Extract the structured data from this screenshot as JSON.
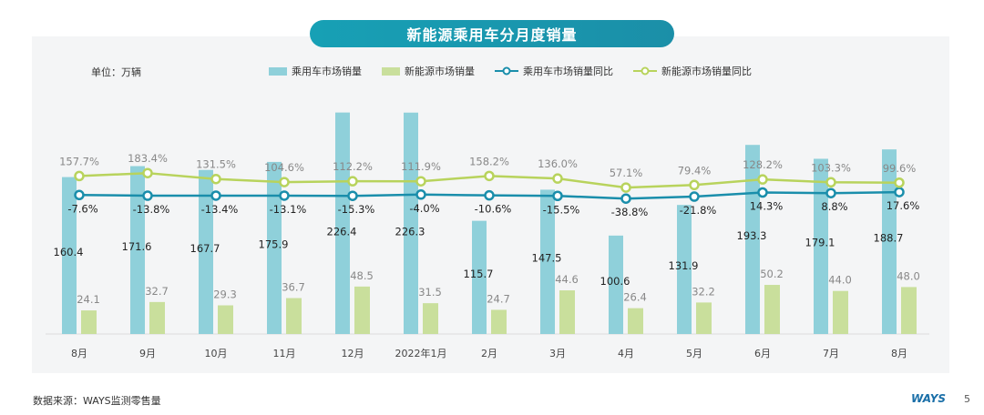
{
  "chart_data": {
    "type": "bar",
    "title": "新能源乘用车分月度销量",
    "unit_label": "单位：万辆",
    "categories": [
      "8月",
      "9月",
      "10月",
      "11月",
      "12月",
      "2022年1月",
      "2月",
      "3月",
      "4月",
      "5月",
      "6月",
      "7月",
      "8月"
    ],
    "series": [
      {
        "name": "乘用车市场销量",
        "kind": "bar",
        "color": "#8fd0da",
        "values": [
          160.4,
          171.6,
          167.7,
          175.9,
          226.4,
          226.3,
          115.7,
          147.5,
          100.6,
          131.9,
          193.3,
          179.1,
          188.7
        ]
      },
      {
        "name": "新能源市场销量",
        "kind": "bar",
        "color": "#c9df9c",
        "values": [
          24.1,
          32.7,
          29.3,
          36.7,
          48.5,
          31.5,
          24.7,
          44.6,
          26.4,
          32.2,
          50.2,
          44.0,
          48.0
        ]
      },
      {
        "name": "乘用车市场销量同比",
        "kind": "line",
        "color": "#1a8eab",
        "unit": "%",
        "values": [
          -7.6,
          -13.8,
          -13.4,
          -13.1,
          -15.3,
          -4.0,
          -10.6,
          -15.5,
          -38.8,
          -21.8,
          14.3,
          8.8,
          17.6
        ]
      },
      {
        "name": "新能源市场销量同比",
        "kind": "line",
        "color": "#b8d35c",
        "unit": "%",
        "values": [
          157.7,
          183.4,
          131.5,
          104.6,
          112.2,
          111.9,
          158.2,
          136.0,
          57.1,
          79.4,
          128.2,
          103.3,
          99.6
        ]
      }
    ],
    "legend_position": "top",
    "grid": false
  },
  "footer": {
    "source": "数据来源：WAYS监测零售量",
    "logo": "WAYS",
    "page": "5"
  }
}
